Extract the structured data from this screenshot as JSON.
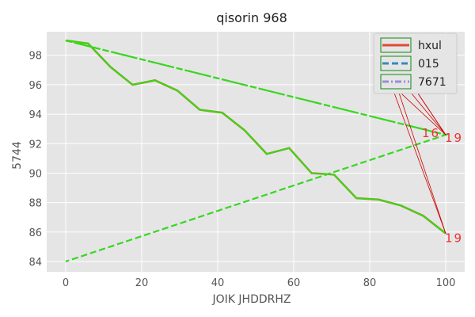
{
  "chart_data": {
    "type": "line",
    "title": "qisorin 968",
    "xlabel": "JOIK JHDDRHZ",
    "ylabel": "5744",
    "xlim": [
      -5,
      105
    ],
    "ylim": [
      83.3,
      99.6
    ],
    "x_ticks": [
      0,
      20,
      40,
      60,
      80,
      100
    ],
    "y_ticks": [
      84,
      86,
      88,
      90,
      92,
      94,
      96,
      98
    ],
    "grid": true,
    "legend_position": "top-right",
    "series": [
      {
        "name": "hxul",
        "color": "#e24a33",
        "style": "solid",
        "x": [
          0,
          5.9,
          11.8,
          17.6,
          23.5,
          29.4,
          35.3,
          41.2,
          47.1,
          52.9,
          58.8,
          64.7,
          70.6,
          76.5,
          82.4,
          88.2,
          94.1,
          100
        ],
        "y": [
          99.0,
          98.8,
          97.2,
          96.0,
          96.3,
          95.6,
          94.3,
          94.1,
          92.9,
          91.3,
          91.7,
          90.0,
          89.9,
          88.3,
          88.2,
          87.8,
          87.1,
          85.9
        ]
      },
      {
        "name": "015",
        "color": "#348abd",
        "style": "dashed",
        "x": [
          0,
          100,
          0
        ],
        "y": [
          99.0,
          92.6,
          84.0
        ]
      },
      {
        "name": "7671",
        "color": "#988ed5",
        "style": "dashdot",
        "x": [
          0,
          100
        ],
        "y": [
          99.0,
          92.6
        ]
      }
    ],
    "overlay_color": "#33dd11",
    "annotations": [
      {
        "text": "16",
        "x": 100,
        "y": 92.6,
        "color": "#ee3333"
      },
      {
        "text": "19",
        "x": 100,
        "y": 92.6,
        "color": "#ee3333"
      },
      {
        "text": "19",
        "x": 100,
        "y": 85.9,
        "color": "#ee3333"
      }
    ]
  }
}
